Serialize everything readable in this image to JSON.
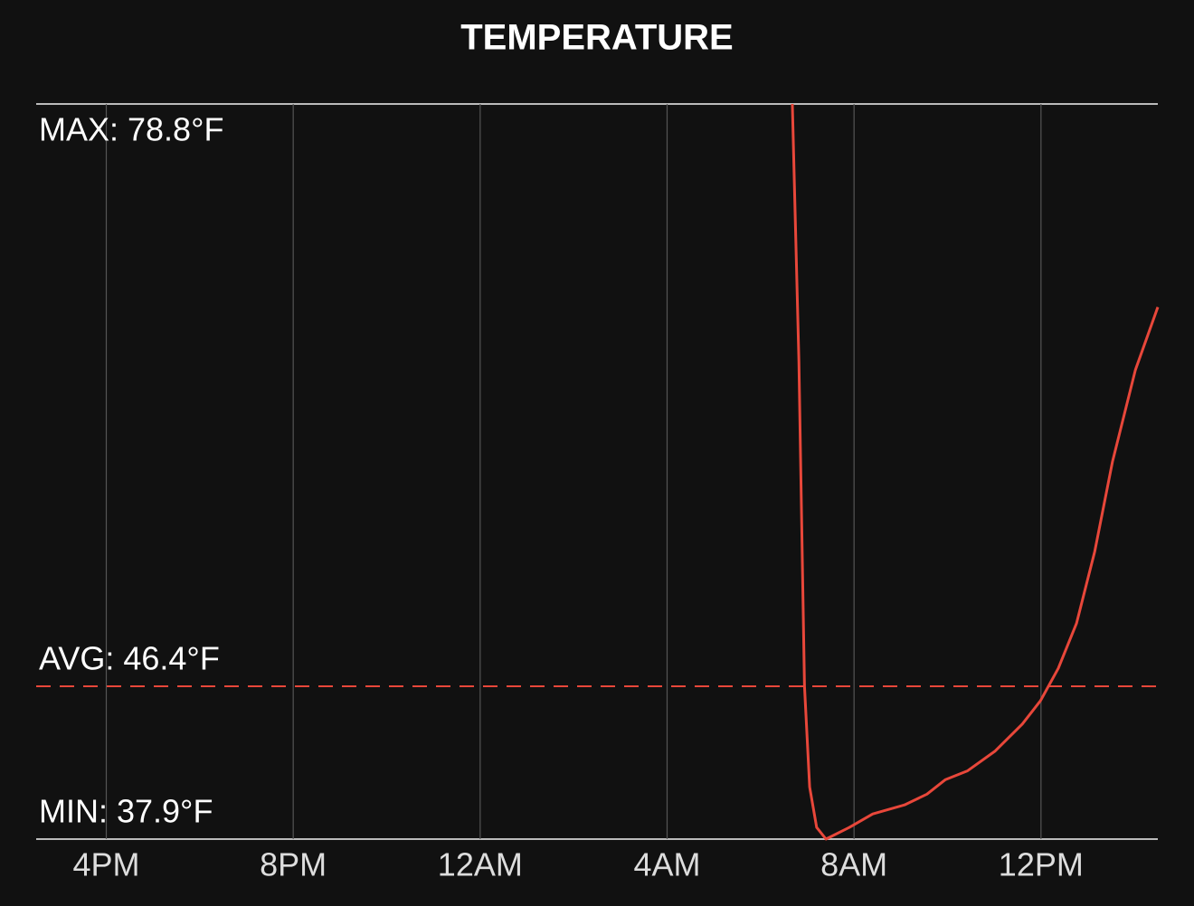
{
  "chart_data": {
    "type": "line",
    "title": "TEMPERATURE",
    "x": [
      30.68,
      30.82,
      30.94,
      31.05,
      31.2,
      31.4,
      31.9,
      32.4,
      33.08,
      33.56,
      33.95,
      34.43,
      35.02,
      35.6,
      35.99,
      36.37,
      36.76,
      37.15,
      37.53,
      38.02,
      38.5
    ],
    "series": [
      {
        "name": "Temperature",
        "color": "#e8473a",
        "values": [
          78.8,
          64.5,
          46.4,
          40.8,
          38.55,
          37.9,
          38.55,
          39.3,
          39.8,
          40.4,
          41.2,
          41.7,
          42.8,
          44.3,
          45.6,
          47.4,
          49.9,
          53.9,
          58.9,
          64.0,
          67.5
        ]
      }
    ],
    "xlim": [
      14.5,
      38.5
    ],
    "xticks": [
      {
        "value": 16,
        "label": "4PM"
      },
      {
        "value": 20,
        "label": "8PM"
      },
      {
        "value": 24,
        "label": "12AM"
      },
      {
        "value": 28,
        "label": "4AM"
      },
      {
        "value": 32,
        "label": "8AM"
      },
      {
        "value": 36,
        "label": "12PM"
      }
    ],
    "ylim": [
      37.9,
      78.8
    ],
    "grid": true,
    "average": {
      "value": 46.4,
      "label": "AVG: 46.4°F",
      "color": "#e8473a"
    },
    "max_label": "MAX: 78.8°F",
    "min_label": "MIN: 37.9°F"
  }
}
